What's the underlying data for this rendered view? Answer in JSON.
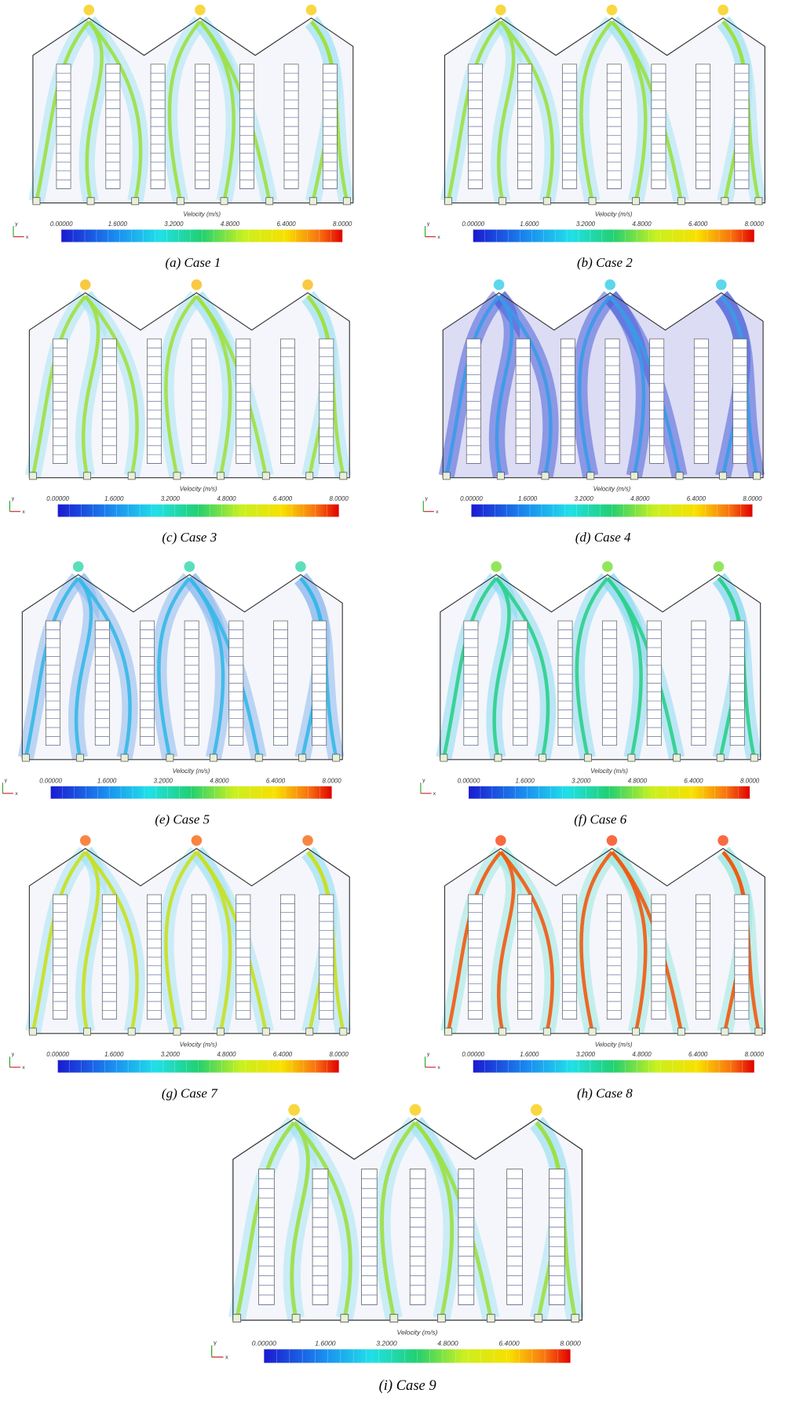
{
  "panels": [
    {
      "caption": "(a) Case 1",
      "colorbar": {
        "title": "Velocity (m/s)",
        "ticks": [
          "0.00000",
          "1.6000",
          "3.2000",
          "4.8000",
          "6.4000",
          "8.0000"
        ]
      },
      "axes": {
        "x": "x",
        "y": "y"
      }
    },
    {
      "caption": "(b) Case 2",
      "colorbar": {
        "title": "Velocity (m/s)",
        "ticks": [
          "0.00000",
          "1.6000",
          "3.2000",
          "4.8000",
          "6.4000",
          "8.0000"
        ]
      },
      "axes": {
        "x": "x",
        "y": "y"
      }
    },
    {
      "caption": "(c) Case 3",
      "colorbar": {
        "title": "Velocity (m/s)",
        "ticks": [
          "0.00000",
          "1.6000",
          "3.2000",
          "4.8000",
          "6.4000",
          "8.0000"
        ]
      },
      "axes": {
        "x": "x",
        "y": "y"
      }
    },
    {
      "caption": "(d) Case 4",
      "colorbar": {
        "title": "Velocity (m/s)",
        "ticks": [
          "0.00000",
          "1.6000",
          "3.2000",
          "4.8000",
          "6.4000",
          "8.0000"
        ]
      },
      "axes": {
        "x": "x",
        "y": "y"
      }
    },
    {
      "caption": "(e) Case 5",
      "colorbar": {
        "title": "Velocity (m/s)",
        "ticks": [
          "0.00000",
          "1.6000",
          "3.2000",
          "4.8000",
          "6.4000",
          "8.0000"
        ]
      },
      "axes": {
        "x": "x",
        "y": "y"
      }
    },
    {
      "caption": "(f) Case 6",
      "colorbar": {
        "title": "Velocity (m/s)",
        "ticks": [
          "0.00000",
          "1.6000",
          "3.2000",
          "4.8000",
          "6.4000",
          "8.0000"
        ]
      },
      "axes": {
        "x": "x",
        "y": "y"
      }
    },
    {
      "caption": "(g) Case 7",
      "colorbar": {
        "title": "Velocity (m/s)",
        "ticks": [
          "0.00000",
          "1.6000",
          "3.2000",
          "4.8000",
          "6.4000",
          "8.0000"
        ]
      },
      "axes": {
        "x": "x",
        "y": "y"
      }
    },
    {
      "caption": "(h) Case 8",
      "colorbar": {
        "title": "Velocity (m/s)",
        "ticks": [
          "0.00000",
          "1.6000",
          "3.2000",
          "4.8000",
          "6.4000",
          "8.0000"
        ]
      },
      "axes": {
        "x": "x",
        "y": "y"
      }
    },
    {
      "caption": "(i) Case 9",
      "colorbar": {
        "title": "Velocity (m/s)",
        "ticks": [
          "0.00000",
          "1.6000",
          "3.2000",
          "4.8000",
          "6.4000",
          "8.0000"
        ]
      },
      "axes": {
        "x": "x",
        "y": "y"
      }
    }
  ]
}
